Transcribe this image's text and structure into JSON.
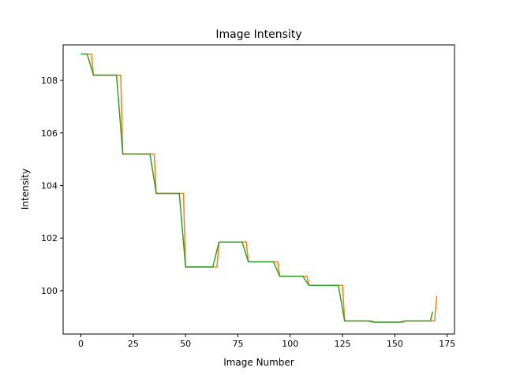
{
  "chart_data": {
    "type": "line",
    "title": "Image Intensity",
    "xlabel": "Image Number",
    "ylabel": "Intensity",
    "xlim": [
      -8.5,
      178.5
    ],
    "ylim": [
      98.35,
      109.35
    ],
    "xticks": [
      0,
      25,
      50,
      75,
      100,
      125,
      150,
      175
    ],
    "yticks": [
      100,
      102,
      104,
      106,
      108
    ],
    "grid": false,
    "series": [
      {
        "name": "series-orange",
        "color": "#ff7f0e",
        "points": [
          [
            0,
            109.0
          ],
          [
            5,
            109.0
          ],
          [
            6,
            108.2
          ],
          [
            19,
            108.2
          ],
          [
            20,
            105.2
          ],
          [
            35,
            105.2
          ],
          [
            36,
            103.7
          ],
          [
            49,
            103.7
          ],
          [
            50,
            100.9
          ],
          [
            65,
            100.9
          ],
          [
            66,
            101.85
          ],
          [
            79,
            101.85
          ],
          [
            80,
            101.1
          ],
          [
            94,
            101.1
          ],
          [
            95,
            100.55
          ],
          [
            108,
            100.55
          ],
          [
            109,
            100.2
          ],
          [
            125,
            100.2
          ],
          [
            126,
            98.85
          ],
          [
            139,
            98.85
          ],
          [
            140,
            98.8
          ],
          [
            154,
            98.8
          ],
          [
            155,
            98.85
          ],
          [
            169,
            98.85
          ],
          [
            170,
            99.8
          ]
        ]
      },
      {
        "name": "series-green",
        "color": "#2ca02c",
        "points": [
          [
            0,
            109.0
          ],
          [
            3,
            109.0
          ],
          [
            6,
            108.2
          ],
          [
            17,
            108.2
          ],
          [
            20,
            105.2
          ],
          [
            33,
            105.2
          ],
          [
            36,
            103.7
          ],
          [
            47,
            103.7
          ],
          [
            50,
            100.9
          ],
          [
            63,
            100.9
          ],
          [
            66,
            101.85
          ],
          [
            77,
            101.85
          ],
          [
            80,
            101.1
          ],
          [
            92,
            101.1
          ],
          [
            95,
            100.55
          ],
          [
            106,
            100.55
          ],
          [
            109,
            100.2
          ],
          [
            123,
            100.2
          ],
          [
            126,
            98.85
          ],
          [
            137,
            98.85
          ],
          [
            140,
            98.8
          ],
          [
            152,
            98.8
          ],
          [
            155,
            98.85
          ],
          [
            167,
            98.85
          ],
          [
            168,
            99.2
          ]
        ]
      }
    ]
  }
}
